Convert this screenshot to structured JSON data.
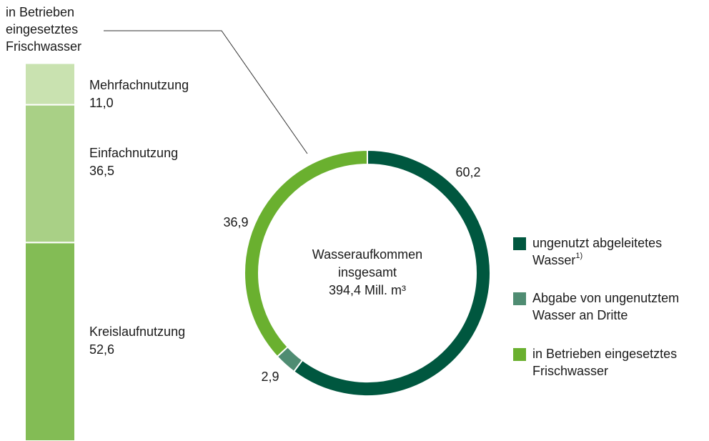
{
  "chart_data": [
    {
      "type": "bar",
      "stacked": true,
      "title": [
        "in Betrieben",
        "eingesetztes",
        "Frischwasser"
      ],
      "categories": [
        null
      ],
      "ylim": [
        0,
        100
      ],
      "series": [
        {
          "name": "Kreislaufnutzung",
          "color": "#83bc55",
          "values": [
            52.6
          ],
          "value_labels": [
            "52,6"
          ]
        },
        {
          "name": "Einfachnutzung",
          "color": "#a9d086",
          "values": [
            36.5
          ],
          "value_labels": [
            "36,5"
          ]
        },
        {
          "name": "Mehrfachnutzung",
          "color": "#c9e2b0",
          "values": [
            11.0
          ],
          "value_labels": [
            "11,0"
          ]
        }
      ]
    },
    {
      "type": "donut",
      "center_text": [
        "Wasseraufkommen",
        "insgesamt",
        "394,4 Mill. m³"
      ],
      "categories": [
        [
          "ungenutzt abgeleitetes",
          "Wasser"
        ],
        [
          "Abgabe von ungenutztem",
          "Wasser an Dritte"
        ],
        [
          "in Betrieben eingesetztes",
          "Frischwasser"
        ]
      ],
      "footnote": "1)",
      "values": [
        60.2,
        2.9,
        36.9
      ],
      "value_labels": [
        "60,2",
        "2,9",
        "36,9"
      ],
      "colors": [
        "#00573f",
        "#4f8c72",
        "#6ab02f"
      ],
      "legend": "right"
    }
  ]
}
